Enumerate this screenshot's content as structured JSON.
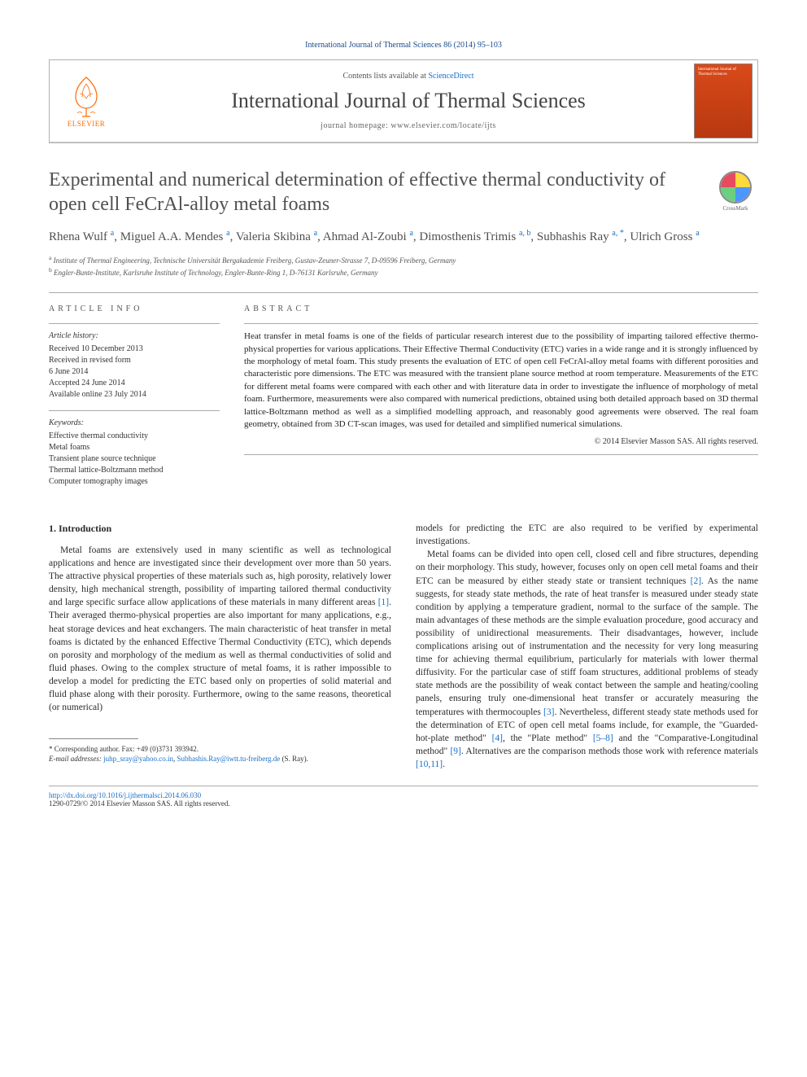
{
  "citation": "International Journal of Thermal Sciences 86 (2014) 95–103",
  "header": {
    "contents_prefix": "Contents lists available at ",
    "contents_link": "ScienceDirect",
    "journal_name": "International Journal of Thermal Sciences",
    "homepage_prefix": "journal homepage: ",
    "homepage_url": "www.elsevier.com/locate/ijts",
    "publisher": "ELSEVIER",
    "cover_title": "International Journal of Thermal Sciences"
  },
  "crossmark_label": "CrossMark",
  "title": "Experimental and numerical determination of effective thermal conductivity of open cell FeCrAl-alloy metal foams",
  "authors_html": "Rhena Wulf <sup>a</sup>, Miguel A.A. Mendes <sup>a</sup>, Valeria Skibina <sup>a</sup>, Ahmad Al-Zoubi <sup>a</sup>, Dimosthenis Trimis <sup>a, b</sup>, Subhashis Ray <sup>a, *</sup>, Ulrich Gross <sup>a</sup>",
  "affiliations": [
    {
      "sup": "a",
      "text": "Institute of Thermal Engineering, Technische Universität Bergakademie Freiberg, Gustav-Zeuner-Strasse 7, D-09596 Freiberg, Germany"
    },
    {
      "sup": "b",
      "text": "Engler-Bunte-Institute, Karlsruhe Institute of Technology, Engler-Bunte-Ring 1, D-76131 Karlsruhe, Germany"
    }
  ],
  "article_info": {
    "heading": "ARTICLE INFO",
    "history_label": "Article history:",
    "history": [
      "Received 10 December 2013",
      "Received in revised form",
      "6 June 2014",
      "Accepted 24 June 2014",
      "Available online 23 July 2014"
    ],
    "keywords_label": "Keywords:",
    "keywords": [
      "Effective thermal conductivity",
      "Metal foams",
      "Transient plane source technique",
      "Thermal lattice-Boltzmann method",
      "Computer tomography images"
    ]
  },
  "abstract": {
    "heading": "ABSTRACT",
    "text": "Heat transfer in metal foams is one of the fields of particular research interest due to the possibility of imparting tailored effective thermo-physical properties for various applications. Their Effective Thermal Conductivity (ETC) varies in a wide range and it is strongly influenced by the morphology of metal foam. This study presents the evaluation of ETC of open cell FeCrAl-alloy metal foams with different porosities and characteristic pore dimensions. The ETC was measured with the transient plane source method at room temperature. Measurements of the ETC for different metal foams were compared with each other and with literature data in order to investigate the influence of morphology of metal foam. Furthermore, measurements were also compared with numerical predictions, obtained using both detailed approach based on 3D thermal lattice-Boltzmann method as well as a simplified modelling approach, and reasonably good agreements were observed. The real foam geometry, obtained from 3D CT-scan images, was used for detailed and simplified numerical simulations.",
    "copyright": "© 2014 Elsevier Masson SAS. All rights reserved."
  },
  "body": {
    "section_heading": "1. Introduction",
    "col1_p1": "Metal foams are extensively used in many scientific as well as technological applications and hence are investigated since their development over more than 50 years. The attractive physical properties of these materials such as, high porosity, relatively lower density, high mechanical strength, possibility of imparting tailored thermal conductivity and large specific surface allow applications of these materials in many different areas ",
    "col1_ref1": "[1]",
    "col1_p1b": ". Their averaged thermo-physical properties are also important for many applications, e.g., heat storage devices and heat exchangers. The main characteristic of heat transfer in metal foams is dictated by the enhanced Effective Thermal Conductivity (ETC), which depends on porosity and morphology of the medium as well as thermal conductivities of solid and fluid phases. Owing to the complex structure of metal foams, it is rather impossible to develop a model for predicting the ETC based only on properties of solid material and fluid phase along with their porosity. Furthermore, owing to the same reasons, theoretical (or numerical)",
    "col2_p1": "models for predicting the ETC are also required to be verified by experimental investigations.",
    "col2_p2a": "Metal foams can be divided into open cell, closed cell and fibre structures, depending on their morphology. This study, however, focuses only on open cell metal foams and their ETC can be measured by either steady state or transient techniques ",
    "col2_ref2": "[2]",
    "col2_p2b": ". As the name suggests, for steady state methods, the rate of heat transfer is measured under steady state condition by applying a temperature gradient, normal to the surface of the sample. The main advantages of these methods are the simple evaluation procedure, good accuracy and possibility of unidirectional measurements. Their disadvantages, however, include complications arising out of instrumentation and the necessity for very long measuring time for achieving thermal equilibrium, particularly for materials with lower thermal diffusivity. For the particular case of stiff foam structures, additional problems of steady state methods are the possibility of weak contact between the sample and heating/cooling panels, ensuring truly one-dimensional heat transfer or accurately measuring the temperatures with thermocouples ",
    "col2_ref3": "[3]",
    "col2_p2c": ". Nevertheless, different steady state methods used for the determination of ETC of open cell metal foams include, for example, the \"Guarded-hot-plate method\" ",
    "col2_ref4": "[4]",
    "col2_p2d": ", the \"Plate method\" ",
    "col2_ref58": "[5–8]",
    "col2_p2e": " and the \"Comparative-Longitudinal method\" ",
    "col2_ref9": "[9]",
    "col2_p2f": ". Alternatives are the comparison methods those work with reference materials ",
    "col2_ref1011": "[10,11]",
    "col2_p2g": "."
  },
  "footnotes": {
    "corr": "* Corresponding author. Fax: +49 (0)3731 393942.",
    "email_label": "E-mail addresses:",
    "email1": "juhp_sray@yahoo.co.in",
    "email2": "Subhashis.Ray@iwtt.tu-freiberg.de",
    "email_name": "(S. Ray)."
  },
  "bottom": {
    "doi": "http://dx.doi.org/10.1016/j.ijthermalsci.2014.06.030",
    "issn_copyright": "1290-0729/© 2014 Elsevier Masson SAS. All rights reserved."
  },
  "colors": {
    "link": "#1a6fc4",
    "elsevier_orange": "#ff6a00",
    "text": "#2a2a2a"
  }
}
